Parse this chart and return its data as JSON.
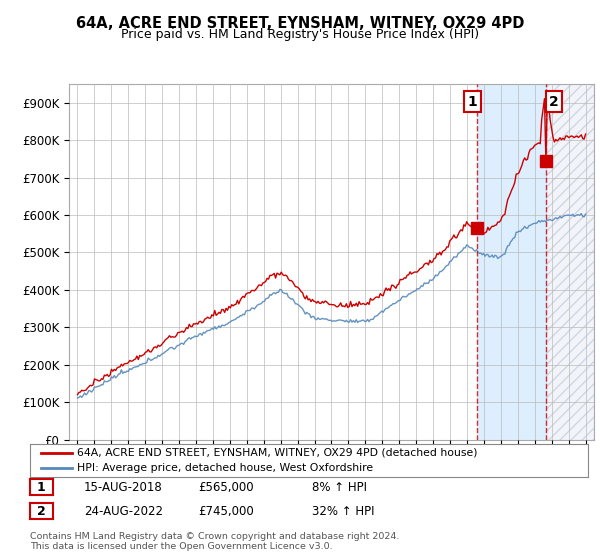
{
  "title": "64A, ACRE END STREET, EYNSHAM, WITNEY, OX29 4PD",
  "subtitle": "Price paid vs. HM Land Registry's House Price Index (HPI)",
  "legend_line1": "64A, ACRE END STREET, EYNSHAM, WITNEY, OX29 4PD (detached house)",
  "legend_line2": "HPI: Average price, detached house, West Oxfordshire",
  "point1_label": "1",
  "point1_date": "15-AUG-2018",
  "point1_price": "£565,000",
  "point1_hpi": "8% ↑ HPI",
  "point2_label": "2",
  "point2_date": "24-AUG-2022",
  "point2_price": "£745,000",
  "point2_hpi": "32% ↑ HPI",
  "footnote": "Contains HM Land Registry data © Crown copyright and database right 2024.\nThis data is licensed under the Open Government Licence v3.0.",
  "red_color": "#cc0000",
  "blue_color": "#5588bb",
  "shade_color": "#ddeeff",
  "annotation_box_color": "#cc0000",
  "ylim_min": 0,
  "ylim_max": 950000,
  "yticks": [
    0,
    100000,
    200000,
    300000,
    400000,
    500000,
    600000,
    700000,
    800000,
    900000
  ],
  "ytick_labels": [
    "£0",
    "£100K",
    "£200K",
    "£300K",
    "£400K",
    "£500K",
    "£600K",
    "£700K",
    "£800K",
    "£900K"
  ],
  "year_start": 1995,
  "year_end": 2025,
  "sale1_year": 2018.62,
  "sale1_price": 565000,
  "sale2_year": 2022.64,
  "sale2_price": 745000,
  "background_color": "#ffffff",
  "grid_color": "#bbbbbb"
}
